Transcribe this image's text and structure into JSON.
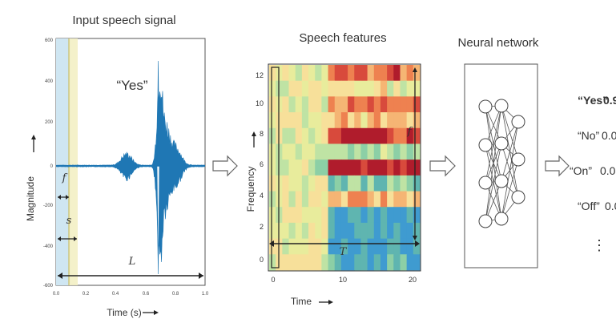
{
  "titles": {
    "input": "Input speech signal",
    "features": "Speech features",
    "network": "Neural network"
  },
  "waveform": {
    "word": "“Yes”",
    "xlabel": "Time (s)",
    "ylabel": "Magnitude",
    "xticks": [
      "0.0",
      "0.2",
      "0.4",
      "0.6",
      "0.8",
      "1.0"
    ],
    "yticks": [
      "600",
      "400",
      "200",
      "0",
      "-200",
      "-400",
      "-600"
    ],
    "sym_f": "f",
    "sym_s": "s",
    "sym_l": "L"
  },
  "spectrogram": {
    "xlabel": "Time",
    "ylabel": "Frequency",
    "xticks": [
      "0",
      "10",
      "20"
    ],
    "yticks": [
      "12",
      "10",
      "8",
      "6",
      "4",
      "2",
      "0"
    ],
    "sym_f": "f",
    "sym_t": "T"
  },
  "outputs": [
    {
      "word": "“Yes”",
      "score": "0.9"
    },
    {
      "word": "“No”",
      "score": "0.0"
    },
    {
      "word": "“On”",
      "score": "0.0"
    },
    {
      "word": "“Off”",
      "score": "0.0"
    }
  ],
  "outputs_more": "⋮",
  "colors": {
    "waveform": "#1f77b4",
    "window_frame": "#cfe6f2",
    "window_stride": "#f3f0c4",
    "network_stroke": "#555555"
  }
}
